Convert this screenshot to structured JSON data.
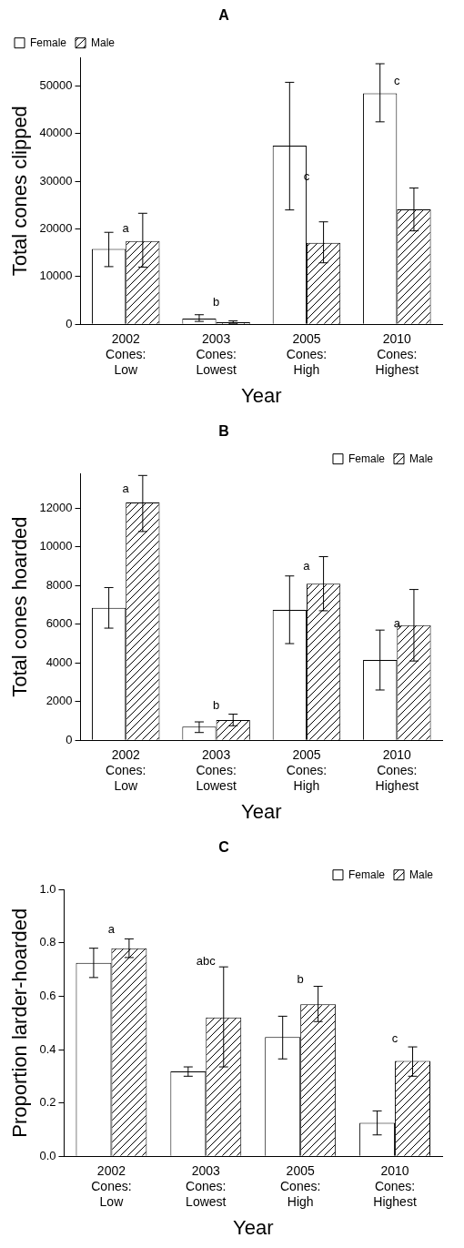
{
  "chart_data": [
    {
      "type": "bar",
      "title": "A",
      "xlabel": "Year",
      "ylabel": "Total cones clipped",
      "categories": [
        [
          "2002",
          "Cones:",
          "Low"
        ],
        [
          "2003",
          "Cones:",
          "Lowest"
        ],
        [
          "2005",
          "Cones:",
          "High"
        ],
        [
          "2010",
          "Cones:",
          "Highest"
        ]
      ],
      "series": [
        {
          "name": "Female",
          "color": "#ffffff",
          "values": [
            15800,
            1200,
            37500,
            48500
          ],
          "errors_low": [
            12100,
            600,
            24000,
            42500
          ],
          "errors_high": [
            19300,
            2000,
            50800,
            54700
          ]
        },
        {
          "name": "Male",
          "color": "#ffffff",
          "values": [
            17500,
            400,
            17100,
            24100
          ],
          "errors_low": [
            12000,
            200,
            12900,
            19600
          ],
          "errors_high": [
            23300,
            700,
            21500,
            28600
          ]
        }
      ],
      "ylim": [
        0,
        56000
      ],
      "yticks": [
        0,
        10000,
        20000,
        30000,
        40000,
        50000
      ],
      "grid": false,
      "legend": "upper left",
      "annotations": [
        {
          "text": "a",
          "category": 0,
          "y": 20000
        },
        {
          "text": "b",
          "category": 1,
          "y": 4500
        },
        {
          "text": "c",
          "category": 2,
          "y": 31000
        },
        {
          "text": "c",
          "category": 3,
          "y": 51000
        }
      ]
    },
    {
      "type": "bar",
      "title": "B",
      "xlabel": "Year",
      "ylabel": "Total cones hoarded",
      "categories": [
        [
          "2002",
          "Cones:",
          "Low"
        ],
        [
          "2003",
          "Cones:",
          "Lowest"
        ],
        [
          "2005",
          "Cones:",
          "High"
        ],
        [
          "2010",
          "Cones:",
          "Highest"
        ]
      ],
      "series": [
        {
          "name": "Female",
          "color": "#ffffff",
          "values": [
            6850,
            700,
            6750,
            4150
          ],
          "errors_low": [
            5800,
            400,
            5000,
            2600
          ],
          "errors_high": [
            7900,
            950,
            8500,
            5700
          ]
        },
        {
          "name": "Male",
          "color": "#ffffff",
          "values": [
            12300,
            1050,
            8100,
            5950
          ],
          "errors_low": [
            10800,
            750,
            6700,
            4100
          ],
          "errors_high": [
            13700,
            1350,
            9500,
            7800
          ]
        }
      ],
      "ylim": [
        0,
        13800
      ],
      "yticks": [
        0,
        2000,
        4000,
        6000,
        8000,
        10000,
        12000
      ],
      "grid": false,
      "legend": "upper right",
      "annotations": [
        {
          "text": "a",
          "category": 0,
          "y": 13000
        },
        {
          "text": "b",
          "category": 1,
          "y": 1800
        },
        {
          "text": "a",
          "category": 2,
          "y": 9000
        },
        {
          "text": "a",
          "category": 3,
          "y": 6000
        }
      ]
    },
    {
      "type": "bar",
      "title": "C",
      "xlabel": "Year",
      "ylabel": "Proportion larder-hoarded",
      "categories": [
        [
          "2002",
          "Cones:",
          "Low"
        ],
        [
          "2003",
          "Cones:",
          "Lowest"
        ],
        [
          "2005",
          "Cones:",
          "High"
        ],
        [
          "2010",
          "Cones:",
          "Highest"
        ]
      ],
      "series": [
        {
          "name": "Female",
          "color": "#ffffff",
          "values": [
            0.725,
            0.318,
            0.447,
            0.125
          ],
          "errors_low": [
            0.67,
            0.3,
            0.365,
            0.08
          ],
          "errors_high": [
            0.78,
            0.335,
            0.525,
            0.17
          ]
        },
        {
          "name": "Male",
          "color": "#ffffff",
          "values": [
            0.78,
            0.52,
            0.57,
            0.357
          ],
          "errors_low": [
            0.745,
            0.335,
            0.505,
            0.3
          ],
          "errors_high": [
            0.815,
            0.71,
            0.637,
            0.41
          ]
        }
      ],
      "ylim": [
        0,
        1
      ],
      "yticks": [
        {
          "value": 0,
          "label": "0.0"
        },
        0.2,
        0.4,
        0.6,
        0.8,
        {
          "value": 1,
          "label": "1.0"
        }
      ],
      "grid": false,
      "legend": "upper right",
      "annotations": [
        {
          "text": "a",
          "category": 0,
          "y": 0.85
        },
        {
          "text": "abc",
          "category": 1,
          "y": 0.73
        },
        {
          "text": "b",
          "category": 2,
          "y": 0.66
        },
        {
          "text": "c",
          "category": 3,
          "y": 0.44
        }
      ]
    }
  ]
}
